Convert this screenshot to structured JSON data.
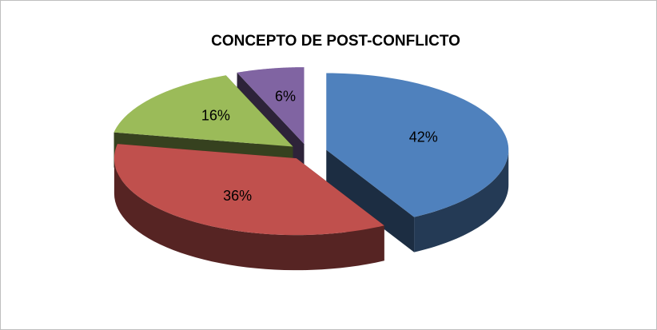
{
  "chart_data": {
    "type": "pie",
    "title": "CONCEPTO DE POST-CONFLICTO",
    "values": [
      42,
      36,
      16,
      6
    ],
    "value_labels": [
      "42%",
      "36%",
      "16%",
      "6%"
    ],
    "colors": [
      "#4f81bd",
      "#c0504d",
      "#9bbb59",
      "#8064a2"
    ]
  }
}
